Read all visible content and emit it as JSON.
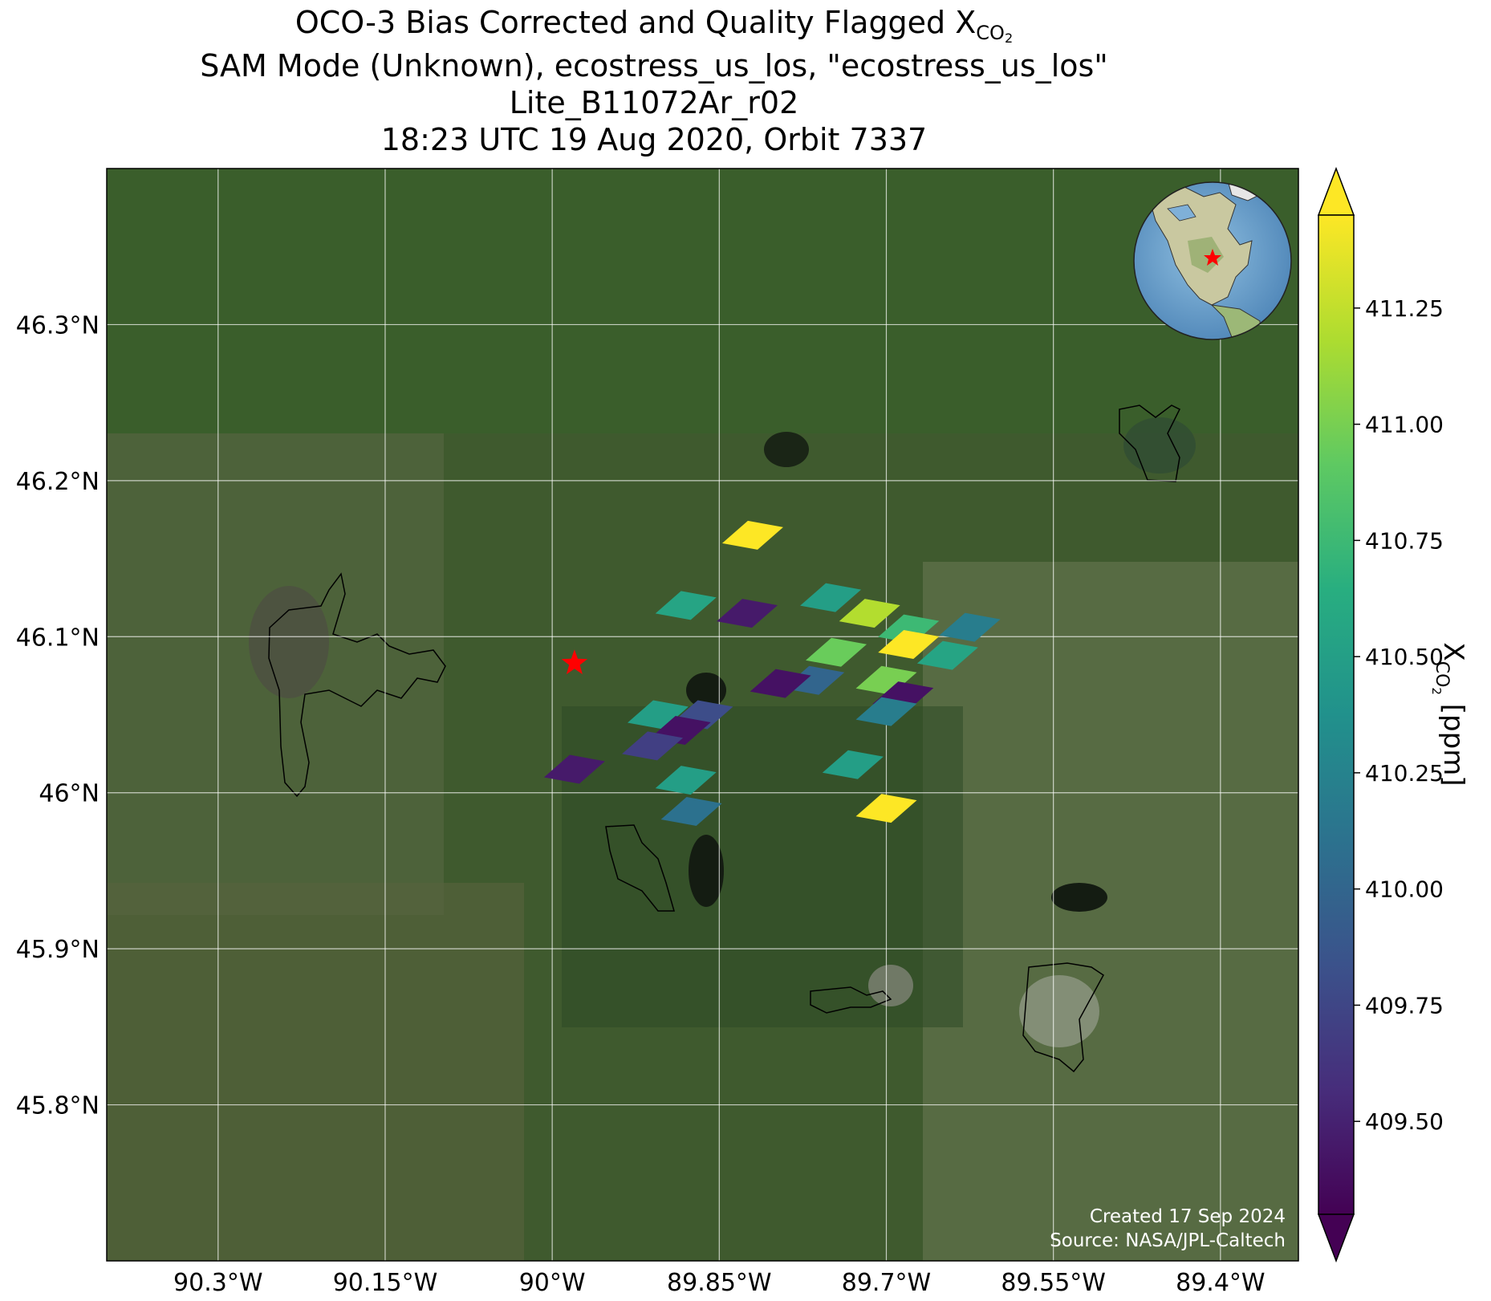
{
  "title": {
    "line1_prefix": "OCO-3 Bias Corrected and Quality Flagged X",
    "line1_sub": "CO",
    "line1_sub2": "2",
    "line2": "SAM Mode (Unknown), ecostress_us_los, \"ecostress_us_los\"",
    "line3": "Lite_B11072Ar_r02",
    "line4": "18:23 UTC 19 Aug 2020, Orbit 7337"
  },
  "map": {
    "lon_range": [
      -90.4,
      -89.33
    ],
    "lat_range": [
      45.7,
      46.4
    ],
    "lon_ticks": [
      {
        "value": -90.3,
        "label": "90.3°W"
      },
      {
        "value": -90.15,
        "label": "90.15°W"
      },
      {
        "value": -90.0,
        "label": "90°W"
      },
      {
        "value": -89.85,
        "label": "89.85°W"
      },
      {
        "value": -89.7,
        "label": "89.7°W"
      },
      {
        "value": -89.55,
        "label": "89.55°W"
      },
      {
        "value": -89.4,
        "label": "89.4°W"
      }
    ],
    "lat_ticks": [
      {
        "value": 46.3,
        "label": "46.3°N"
      },
      {
        "value": 46.2,
        "label": "46.2°N"
      },
      {
        "value": 46.1,
        "label": "46.1°N"
      },
      {
        "value": 46.0,
        "label": "46°N"
      },
      {
        "value": 45.9,
        "label": "45.9°N"
      },
      {
        "value": 45.8,
        "label": "45.8°N"
      }
    ],
    "gridlines": true,
    "basemap": "satellite imagery",
    "target_marker": {
      "lon": -89.98,
      "lat": 46.083,
      "color": "#ff0000",
      "shape": "star"
    },
    "inset_globe": {
      "position": "top-right",
      "marker_color": "#ff0000"
    },
    "credits": {
      "line1": "Created 17 Sep 2024",
      "line2": "Source: NASA/JPL-Caltech"
    }
  },
  "chart_data": {
    "type": "heatmap",
    "soundings_xco2_ppm": [
      {
        "lon": -89.82,
        "lat": 46.165,
        "xco2": 411.45
      },
      {
        "lon": -89.88,
        "lat": 46.12,
        "xco2": 410.55
      },
      {
        "lon": -89.825,
        "lat": 46.115,
        "xco2": 409.45
      },
      {
        "lon": -89.75,
        "lat": 46.125,
        "xco2": 410.5
      },
      {
        "lon": -89.715,
        "lat": 46.115,
        "xco2": 411.2
      },
      {
        "lon": -89.745,
        "lat": 46.09,
        "xco2": 410.95
      },
      {
        "lon": -89.68,
        "lat": 46.105,
        "xco2": 410.75
      },
      {
        "lon": -89.625,
        "lat": 46.106,
        "xco2": 410.2
      },
      {
        "lon": -89.68,
        "lat": 46.095,
        "xco2": 411.45
      },
      {
        "lon": -89.645,
        "lat": 46.088,
        "xco2": 410.55
      },
      {
        "lon": -89.765,
        "lat": 46.072,
        "xco2": 410.0
      },
      {
        "lon": -89.795,
        "lat": 46.07,
        "xco2": 409.4
      },
      {
        "lon": -89.7,
        "lat": 46.072,
        "xco2": 411.0
      },
      {
        "lon": -89.685,
        "lat": 46.062,
        "xco2": 409.4
      },
      {
        "lon": -89.7,
        "lat": 46.052,
        "xco2": 410.2
      },
      {
        "lon": -89.905,
        "lat": 46.05,
        "xco2": 410.5
      },
      {
        "lon": -89.865,
        "lat": 46.05,
        "xco2": 409.8
      },
      {
        "lon": -89.885,
        "lat": 46.04,
        "xco2": 409.4
      },
      {
        "lon": -89.91,
        "lat": 46.03,
        "xco2": 409.7
      },
      {
        "lon": -89.98,
        "lat": 46.015,
        "xco2": 409.45
      },
      {
        "lon": -89.88,
        "lat": 46.008,
        "xco2": 410.5
      },
      {
        "lon": -89.73,
        "lat": 46.018,
        "xco2": 410.5
      },
      {
        "lon": -89.875,
        "lat": 45.988,
        "xco2": 410.1
      },
      {
        "lon": -89.7,
        "lat": 45.99,
        "xco2": 411.45
      }
    ],
    "colorbar": {
      "label_prefix": "X",
      "label_sub": "CO",
      "label_sub2": "2",
      "label_suffix": " [ppm]",
      "colormap": "viridis",
      "range": [
        409.3,
        411.45
      ],
      "extend": "both",
      "ticks": [
        {
          "value": 409.5,
          "label": "409.50"
        },
        {
          "value": 409.75,
          "label": "409.75"
        },
        {
          "value": 410.0,
          "label": "410.00"
        },
        {
          "value": 410.25,
          "label": "410.25"
        },
        {
          "value": 410.5,
          "label": "410.50"
        },
        {
          "value": 410.75,
          "label": "410.75"
        },
        {
          "value": 411.0,
          "label": "411.00"
        },
        {
          "value": 411.25,
          "label": "411.25"
        }
      ]
    }
  }
}
